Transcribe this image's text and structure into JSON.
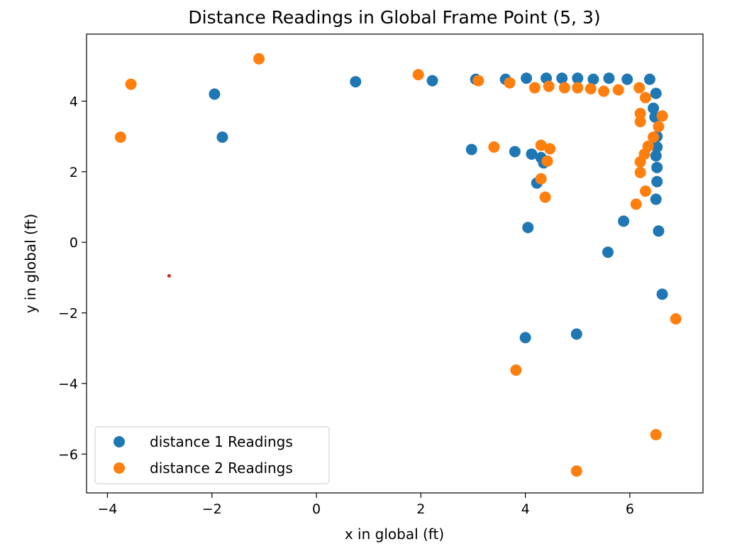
{
  "chart_data": {
    "type": "scatter",
    "title": "Distance Readings in Global Frame Point (5, 3)",
    "xlabel": "x in global (ft)",
    "ylabel": "y in global (ft)",
    "xlim": [
      -4.4,
      7.4
    ],
    "ylim": [
      -7.1,
      5.9
    ],
    "xticks": [
      -4,
      -2,
      0,
      2,
      4,
      6
    ],
    "yticks": [
      -6,
      -4,
      -2,
      0,
      2,
      4
    ],
    "tick_labels": {
      "x": [
        "−4",
        "−2",
        "0",
        "2",
        "4",
        "6"
      ],
      "y": [
        "−6",
        "−4",
        "−2",
        "0",
        "2",
        "4"
      ]
    },
    "grid": false,
    "legend": "lower-left",
    "series": [
      {
        "name": "distance 1 Readings",
        "color": "#1f77b4",
        "x": [
          -1.95,
          -1.8,
          0.75,
          2.22,
          3.05,
          3.62,
          4.02,
          4.4,
          4.7,
          5.0,
          5.3,
          5.6,
          5.95,
          6.38,
          6.5,
          6.45,
          6.48,
          6.52,
          6.52,
          6.5,
          6.52,
          6.52,
          6.5,
          2.97,
          3.8,
          4.12,
          4.3,
          4.35,
          4.22,
          4.05,
          5.88,
          5.58,
          6.55,
          6.62,
          4.0,
          4.98
        ],
        "y": [
          4.2,
          2.98,
          4.55,
          4.58,
          4.62,
          4.62,
          4.65,
          4.65,
          4.65,
          4.65,
          4.62,
          4.65,
          4.62,
          4.62,
          4.22,
          3.8,
          3.55,
          3.0,
          2.7,
          2.45,
          2.12,
          1.72,
          1.22,
          2.63,
          2.57,
          2.5,
          2.4,
          2.25,
          1.68,
          0.42,
          0.6,
          -0.28,
          0.32,
          -1.47,
          -2.7,
          -2.6
        ]
      },
      {
        "name": "distance 2 Readings",
        "color": "#ff7f0e",
        "x": [
          -3.75,
          -3.55,
          -1.1,
          1.95,
          3.1,
          3.7,
          4.18,
          4.45,
          4.75,
          5.0,
          5.25,
          5.5,
          5.78,
          6.18,
          6.3,
          6.2,
          6.2,
          6.62,
          6.55,
          6.45,
          6.35,
          6.28,
          6.2,
          6.2,
          6.3,
          6.12,
          3.4,
          4.3,
          4.47,
          4.42,
          4.3,
          4.38,
          3.82,
          6.88,
          6.5,
          4.98
        ],
        "y": [
          2.98,
          4.48,
          5.2,
          4.75,
          4.58,
          4.52,
          4.38,
          4.42,
          4.38,
          4.38,
          4.35,
          4.28,
          4.32,
          4.38,
          4.1,
          3.65,
          3.42,
          3.58,
          3.28,
          2.98,
          2.72,
          2.5,
          2.28,
          1.98,
          1.45,
          1.08,
          2.7,
          2.75,
          2.65,
          2.3,
          1.8,
          1.28,
          -3.62,
          -2.17,
          -5.45,
          -6.48
        ]
      }
    ],
    "annotations": [
      {
        "x": -2.82,
        "y": -0.95,
        "color": "#d62728"
      }
    ]
  }
}
